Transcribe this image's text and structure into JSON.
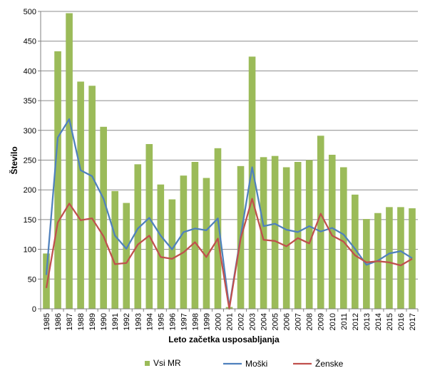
{
  "chart_data": {
    "type": "bar",
    "title": "",
    "xlabel": "Leto začetka usposabljanja",
    "ylabel": "Število",
    "ylim": [
      0,
      500
    ],
    "yticks": [
      0,
      50,
      100,
      150,
      200,
      250,
      300,
      350,
      400,
      450,
      500
    ],
    "grid": true,
    "legend_position": "bottom",
    "categories": [
      "1985",
      "1986",
      "1987",
      "1988",
      "1989",
      "1990",
      "1991",
      "1992",
      "1993",
      "1994",
      "1995",
      "1996",
      "1997",
      "1998",
      "1999",
      "2000",
      "2001",
      "2002",
      "2003",
      "2004",
      "2005",
      "2006",
      "2007",
      "2008",
      "2009",
      "2010",
      "2011",
      "2012",
      "2013",
      "2014",
      "2015",
      "2016",
      "2017"
    ],
    "series": [
      {
        "name": "Vsi MR",
        "type": "bar",
        "color": "#9bbb59",
        "values": [
          93,
          433,
          497,
          382,
          375,
          306,
          198,
          178,
          243,
          277,
          209,
          184,
          224,
          247,
          220,
          270,
          3,
          240,
          424,
          255,
          257,
          238,
          247,
          250,
          291,
          259,
          238,
          192,
          151,
          161,
          171,
          171,
          169
        ]
      },
      {
        "name": "Moški",
        "type": "line",
        "color": "#4f81bd",
        "values": [
          57,
          288,
          319,
          233,
          223,
          185,
          123,
          101,
          135,
          153,
          123,
          100,
          129,
          135,
          132,
          152,
          3,
          122,
          238,
          139,
          143,
          133,
          129,
          139,
          130,
          136,
          125,
          101,
          74,
          81,
          93,
          97,
          85
        ]
      },
      {
        "name": "Ženske",
        "type": "line",
        "color": "#c0504d",
        "values": [
          35,
          145,
          177,
          149,
          152,
          122,
          75,
          77,
          108,
          123,
          87,
          84,
          95,
          112,
          87,
          118,
          0,
          118,
          185,
          116,
          114,
          105,
          119,
          110,
          160,
          123,
          113,
          90,
          78,
          80,
          78,
          73,
          84
        ]
      }
    ]
  }
}
